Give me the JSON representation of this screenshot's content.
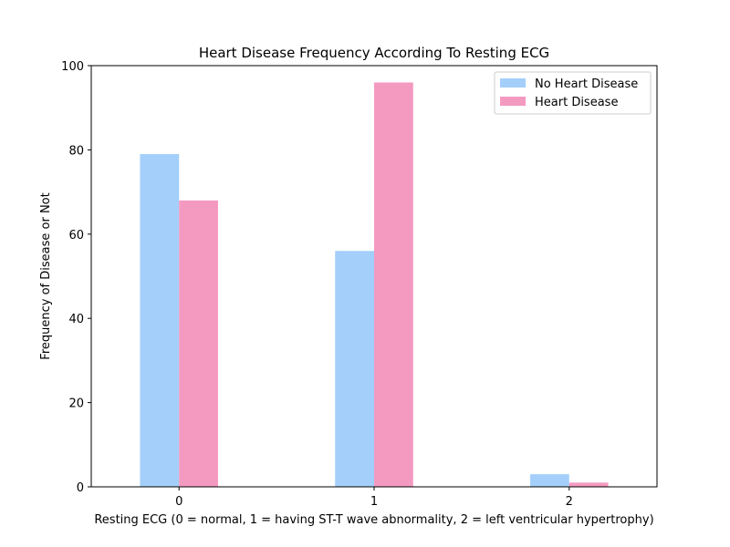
{
  "chart_data": {
    "type": "bar",
    "title": "Heart Disease Frequency According To Resting ECG",
    "xlabel": "Resting ECG  (0 = normal, 1 = having ST-T wave abnormality, 2 = left ventricular hypertrophy)",
    "ylabel": "Frequency of Disease or Not",
    "categories": [
      "0",
      "1",
      "2"
    ],
    "ylim": [
      0,
      100
    ],
    "yticks": [
      0,
      20,
      40,
      60,
      80,
      100
    ],
    "series": [
      {
        "name": "No Heart Disease",
        "values": [
          79,
          56,
          3
        ],
        "color": "#a3cffa"
      },
      {
        "name": "Heart Disease",
        "values": [
          68,
          96,
          1
        ],
        "color": "#f49ac1"
      }
    ],
    "legend_position": "top-right",
    "grid": false
  }
}
